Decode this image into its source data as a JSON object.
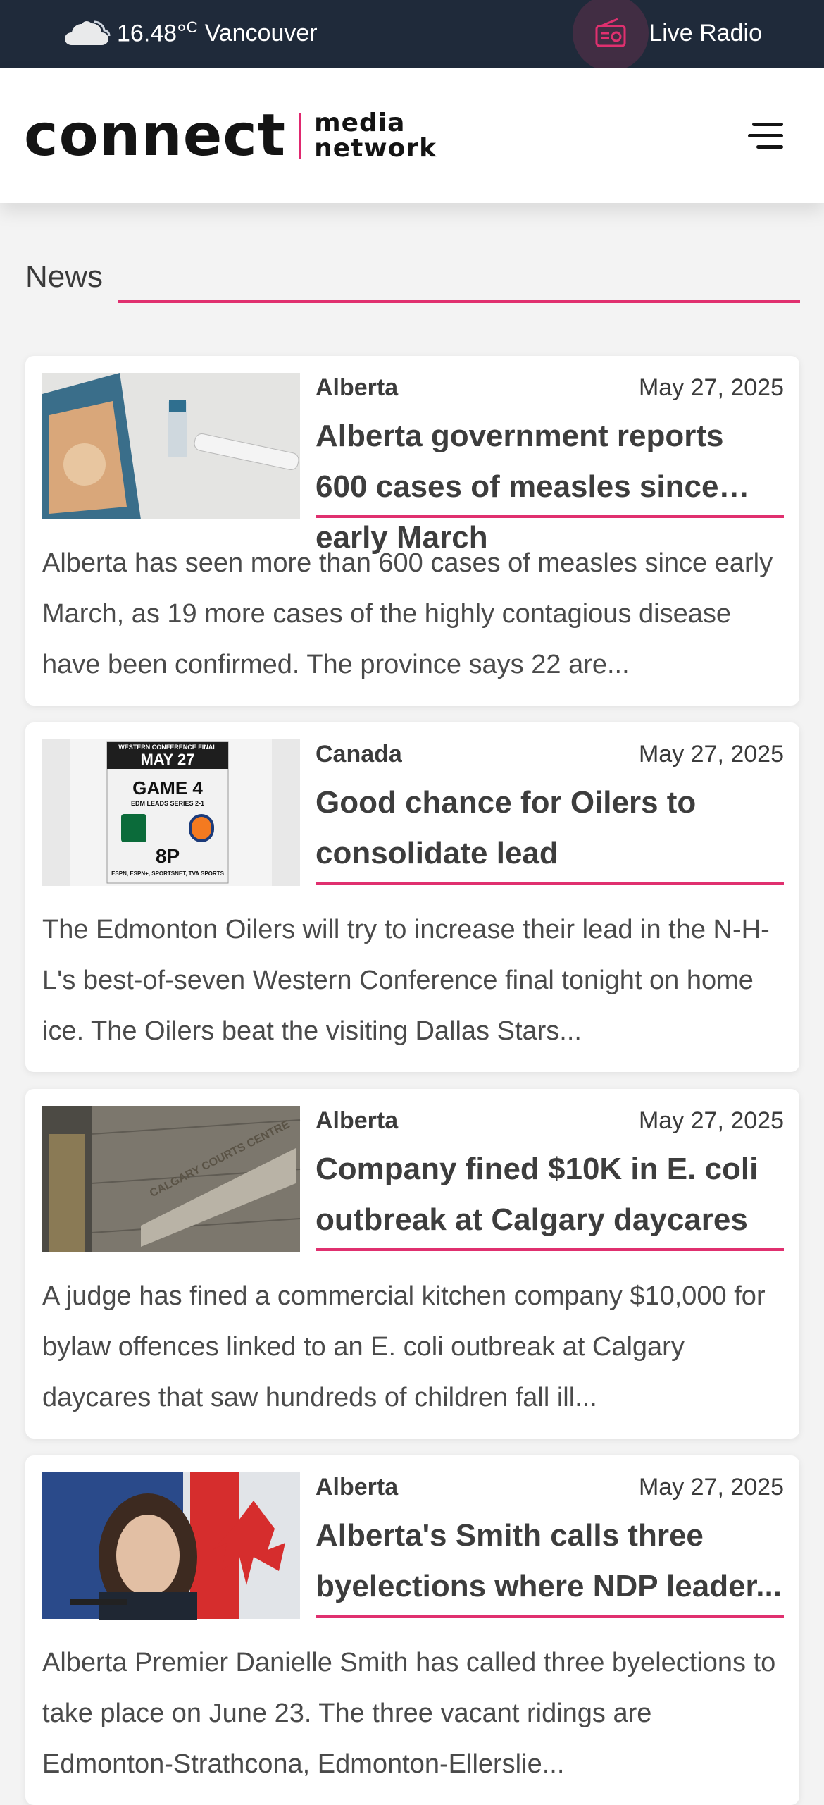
{
  "topbar": {
    "temperature": "16.48°",
    "unit": "C",
    "city": "Vancouver",
    "weather_icon": "cloud-icon",
    "radio_label": "Live Radio",
    "radio_icon": "radio-icon"
  },
  "header": {
    "logo_word": "connect",
    "logo_sub_line1": "media",
    "logo_sub_line2": "network",
    "menu_icon": "hamburger-menu-icon"
  },
  "section": {
    "title": "News"
  },
  "articles": [
    {
      "category": "Alberta",
      "date": "May 27, 2025",
      "headline": "Alberta government reports 600 cases of measles since early March",
      "summary": "Alberta has seen more than 600 cases of measles since early March, as 19 more cases of the highly contagious disease have been confirmed. The province says 22 are...",
      "image": "measles-vaccine-photo"
    },
    {
      "category": "Canada",
      "date": "May 27, 2025",
      "headline": "Good chance for Oilers to consolidate lead",
      "summary": "The Edmonton Oilers will try to increase their lead in the N-H-L's best-of-seven Western Conference final tonight on home ice. The Oilers beat the visiting Dallas Stars...",
      "image": "oilers-game4-poster",
      "poster": {
        "top": "WESTERN CONFERENCE FINAL",
        "date": "MAY 27",
        "game": "GAME 4",
        "series": "EDM LEADS SERIES 2-1",
        "time": "8P",
        "networks": "ESPN, ESPN+, SPORTSNET, TVA SPORTS"
      }
    },
    {
      "category": "Alberta",
      "date": "May 27, 2025",
      "headline": "Company fined $10K in E. coli outbreak at Calgary daycares",
      "summary": "A judge has fined a commercial kitchen company $10,000 for bylaw offences linked to an E. coli outbreak at Calgary daycares that saw hundreds of children fall ill...",
      "image": "calgary-courts-centre-photo",
      "sign_text": "CALGARY COURTS CENTRE"
    },
    {
      "category": "Alberta",
      "date": "May 27, 2025",
      "headline": "Alberta's Smith calls three byelections where NDP leader...",
      "summary": "Alberta Premier Danielle Smith has called three byelections to take place on June 23. The three vacant ridings are Edmonton-Strathcona, Edmonton-Ellerslie...",
      "image": "danielle-smith-photo"
    }
  ],
  "colors": {
    "topbar_bg": "#1f2a3a",
    "accent": "#e0306f",
    "page_bg": "#f3f3f3"
  }
}
